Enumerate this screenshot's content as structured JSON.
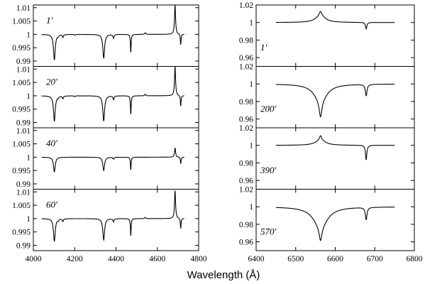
{
  "chart_data": {
    "type": "line",
    "xlabel": "Wavelength (Å)",
    "columns": [
      {
        "id": "left",
        "xlim": [
          4000,
          4800
        ],
        "xticks": [
          4000,
          4200,
          4400,
          4600,
          4800
        ],
        "xtick_labels": [
          "4000",
          "4200",
          "4400",
          "4600",
          "4800"
        ],
        "ylim": [
          0.988,
          1.011
        ],
        "yticks": [
          0.99,
          0.995,
          1,
          1.005,
          1.01
        ],
        "ytick_labels": [
          "0.99",
          "0.995",
          "1",
          "1.005",
          "1.01"
        ],
        "continuum": 1.0,
        "x_range": [
          4040,
          4730
        ],
        "panels": [
          {
            "label": "1'",
            "lines": [
              {
                "center": 4101.7,
                "depth": -0.0095,
                "width": 5
              },
              {
                "center": 4340.5,
                "depth": -0.009,
                "width": 5
              },
              {
                "center": 4471.5,
                "depth": -0.0068,
                "width": 2
              },
              {
                "center": 4541.6,
                "depth": 0.0006,
                "width": 3
              },
              {
                "center": 4685.7,
                "depth": 0.011,
                "width": 3
              },
              {
                "center": 4713.2,
                "depth": -0.004,
                "width": 2
              },
              {
                "center": 4388,
                "depth": -0.0014,
                "width": 3
              },
              {
                "center": 4143,
                "depth": -0.001,
                "width": 3
              },
              {
                "center": 4026,
                "depth": -0.0007,
                "width": 3
              },
              {
                "center": 4120,
                "depth": -0.0005,
                "width": 3
              },
              {
                "center": 4200,
                "depth": -0.0003,
                "width": 3
              }
            ]
          },
          {
            "label": "20'",
            "lines": [
              {
                "center": 4101.7,
                "depth": -0.0095,
                "width": 5
              },
              {
                "center": 4340.5,
                "depth": -0.0095,
                "width": 5
              },
              {
                "center": 4471.5,
                "depth": -0.007,
                "width": 2
              },
              {
                "center": 4541.6,
                "depth": 0.0006,
                "width": 3
              },
              {
                "center": 4685.7,
                "depth": 0.011,
                "width": 3
              },
              {
                "center": 4713.2,
                "depth": -0.004,
                "width": 2
              },
              {
                "center": 4388,
                "depth": -0.0014,
                "width": 3
              },
              {
                "center": 4143,
                "depth": -0.001,
                "width": 3
              },
              {
                "center": 4026,
                "depth": -0.0007,
                "width": 3
              },
              {
                "center": 4120,
                "depth": -0.0005,
                "width": 3
              },
              {
                "center": 4200,
                "depth": -0.0003,
                "width": 3
              }
            ]
          },
          {
            "label": "40'",
            "lines": [
              {
                "center": 4101.7,
                "depth": -0.0055,
                "width": 5
              },
              {
                "center": 4340.5,
                "depth": -0.005,
                "width": 5
              },
              {
                "center": 4471.5,
                "depth": -0.0048,
                "width": 2
              },
              {
                "center": 4685.7,
                "depth": 0.0035,
                "width": 3
              },
              {
                "center": 4713.2,
                "depth": -0.0025,
                "width": 2
              },
              {
                "center": 4388,
                "depth": -0.0007,
                "width": 3
              }
            ]
          },
          {
            "label": "60'",
            "lines": [
              {
                "center": 4101.7,
                "depth": -0.0085,
                "width": 5
              },
              {
                "center": 4340.5,
                "depth": -0.008,
                "width": 5
              },
              {
                "center": 4471.5,
                "depth": -0.0065,
                "width": 2
              },
              {
                "center": 4541.6,
                "depth": 0.0005,
                "width": 3
              },
              {
                "center": 4685.7,
                "depth": 0.0105,
                "width": 3
              },
              {
                "center": 4713.2,
                "depth": -0.0038,
                "width": 2
              },
              {
                "center": 4388,
                "depth": -0.0012,
                "width": 3
              },
              {
                "center": 4143,
                "depth": -0.001,
                "width": 3
              },
              {
                "center": 4026,
                "depth": -0.0006,
                "width": 3
              },
              {
                "center": 4120,
                "depth": -0.0005,
                "width": 3
              }
            ]
          }
        ]
      },
      {
        "id": "right",
        "xlim": [
          6400,
          6800
        ],
        "xticks": [
          6400,
          6500,
          6600,
          6700,
          6800
        ],
        "xtick_labels": [
          "6400",
          "6500",
          "6600",
          "6700",
          "6800"
        ],
        "ylim": [
          0.95,
          1.02
        ],
        "yticks": [
          0.96,
          0.98,
          1,
          1.02
        ],
        "ytick_labels": [
          "0.96",
          "0.98",
          "1",
          "1.02"
        ],
        "continuum": 1.0,
        "x_range": [
          6450,
          6750
        ],
        "panels": [
          {
            "label": "1'",
            "lines": [
              {
                "center": 6562.8,
                "depth": 0.0075,
                "width": 15
              },
              {
                "center": 6562.8,
                "depth": 0.005,
                "width": 4
              },
              {
                "center": 6678.2,
                "depth": -0.0075,
                "width": 2
              }
            ]
          },
          {
            "label": "200'",
            "lines": [
              {
                "center": 6562.8,
                "depth": -0.019,
                "width": 20
              },
              {
                "center": 6562.8,
                "depth": -0.0185,
                "width": 4
              },
              {
                "center": 6678.2,
                "depth": -0.013,
                "width": 2.5
              }
            ]
          },
          {
            "label": "390'",
            "lines": [
              {
                "center": 6562.8,
                "depth": 0.006,
                "width": 15
              },
              {
                "center": 6562.8,
                "depth": 0.005,
                "width": 3
              },
              {
                "center": 6678.2,
                "depth": -0.0165,
                "width": 2
              }
            ]
          },
          {
            "label": "570'",
            "lines": [
              {
                "center": 6562.8,
                "depth": -0.023,
                "width": 22
              },
              {
                "center": 6562.8,
                "depth": -0.0155,
                "width": 4
              },
              {
                "center": 6678.2,
                "depth": -0.014,
                "width": 2.5
              }
            ]
          }
        ]
      }
    ]
  }
}
